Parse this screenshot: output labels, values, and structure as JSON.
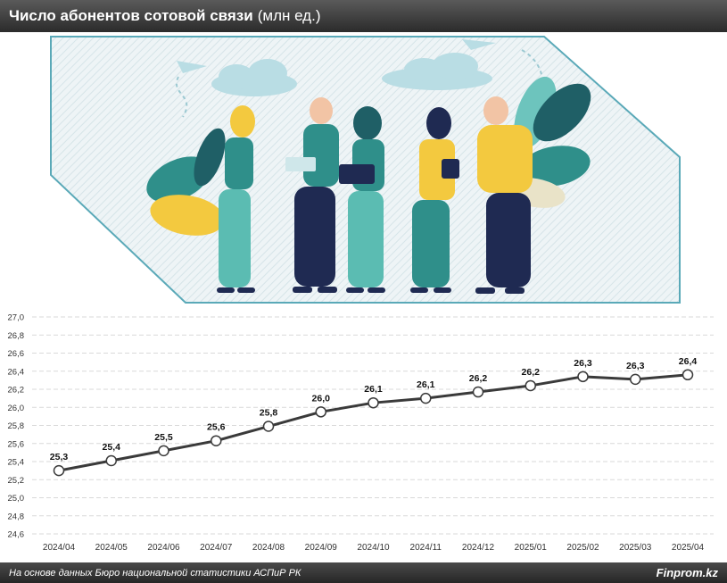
{
  "header": {
    "title_bold": "Число абонентов сотовой связи",
    "title_unit": "(млн ед.)"
  },
  "footer": {
    "source": "На основе данных Бюро национальной статистики АСПиР РК",
    "brand": "Finprom.kz"
  },
  "colors": {
    "line": "#3a3a3a",
    "marker_fill": "#ffffff",
    "grid": "#d9d9d9",
    "frame": "#5aa9b8",
    "frame_bg": "#eef4f6",
    "teal": "#2f8f8a",
    "dark_teal": "#1f5f66",
    "yellow": "#f3c93f",
    "navy": "#1f2a52"
  },
  "illustration": {
    "icons": [
      "paper-plane-icon",
      "cloud-icon",
      "people-group-illustration",
      "leaf-icon"
    ]
  },
  "chart_data": {
    "type": "line",
    "title": "Число абонентов сотовой связи (млн ед.)",
    "categories": [
      "2024/04",
      "2024/05",
      "2024/06",
      "2024/07",
      "2024/08",
      "2024/09",
      "2024/10",
      "2024/11",
      "2024/12",
      "2025/01",
      "2025/02",
      "2025/03",
      "2025/04"
    ],
    "values": [
      25.3,
      25.41,
      25.52,
      25.63,
      25.79,
      25.95,
      26.05,
      26.1,
      26.17,
      26.24,
      26.34,
      26.31,
      26.36
    ],
    "data_labels": [
      "25,3",
      "25,4",
      "25,5",
      "25,6",
      "25,8",
      "26,0",
      "26,1",
      "26,1",
      "26,2",
      "26,2",
      "26,3",
      "26,3",
      "26,4"
    ],
    "y_ticks": [
      "24,6",
      "24,8",
      "25,0",
      "25,2",
      "25,4",
      "25,6",
      "25,8",
      "26,0",
      "26,2",
      "26,4",
      "26,6",
      "26,8",
      "27,0"
    ],
    "ylim": [
      24.6,
      27.0
    ],
    "grid": true,
    "legend": "none"
  }
}
